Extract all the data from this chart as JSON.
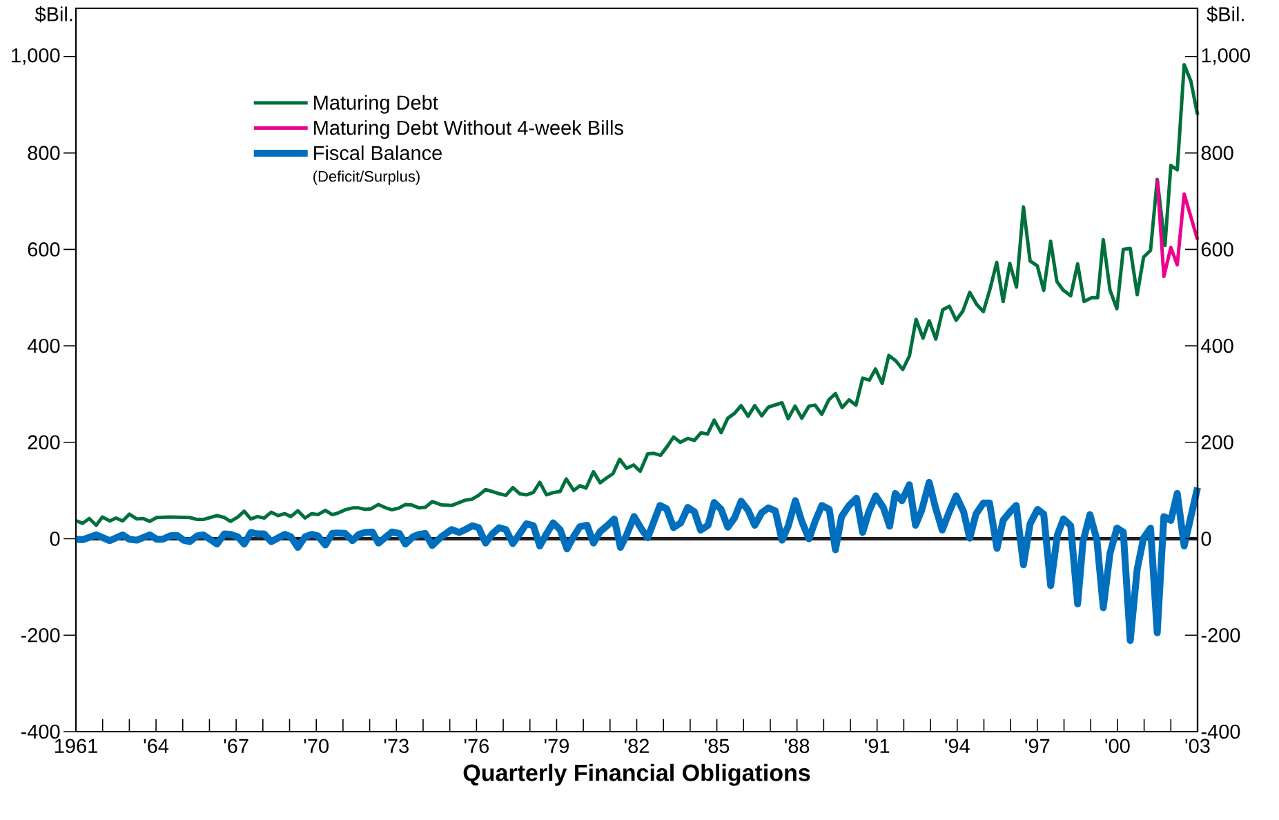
{
  "chart_data": {
    "type": "line",
    "xlabel": "Quarterly Financial Obligations",
    "ylabel": "$Bil.",
    "y2label": "$Bil.",
    "annotations": [
      "(Deficit/Surplus)"
    ],
    "xlim": [
      1961,
      2003
    ],
    "xticks": [
      {
        "value": 1961,
        "label": "1961"
      },
      {
        "value": 1964,
        "label": "'64"
      },
      {
        "value": 1967,
        "label": "'67"
      },
      {
        "value": 1970,
        "label": "'70"
      },
      {
        "value": 1973,
        "label": "'73"
      },
      {
        "value": 1976,
        "label": "'76"
      },
      {
        "value": 1979,
        "label": "'79"
      },
      {
        "value": 1982,
        "label": "'82"
      },
      {
        "value": 1985,
        "label": "'85"
      },
      {
        "value": 1988,
        "label": "'88"
      },
      {
        "value": 1991,
        "label": "'91"
      },
      {
        "value": 1994,
        "label": "'94"
      },
      {
        "value": 1997,
        "label": "'97"
      },
      {
        "value": 2000,
        "label": "'00"
      },
      {
        "value": 2003,
        "label": "'03"
      }
    ],
    "ylim": [
      -400,
      1100
    ],
    "yticks": [
      -400,
      -200,
      0,
      200,
      400,
      600,
      800,
      {
        "value": 1000,
        "label": "1,000"
      }
    ],
    "y2lim": [
      -400,
      1100
    ],
    "y2ticks": [
      -400,
      -200,
      0,
      200,
      400,
      600,
      800,
      {
        "value": 1000,
        "label": "1,000"
      }
    ],
    "legend": "top left",
    "ref_lines": [
      {
        "axis": "y",
        "value": 0,
        "color": "#231f20"
      }
    ],
    "series": [
      {
        "name": "Maturing Debt",
        "color": "#00703c",
        "x": [
          1961.02,
          1961.25,
          1961.5,
          1961.76,
          1961.99,
          1962.27,
          1962.5,
          1962.75,
          1963.0,
          1963.28,
          1963.51,
          1963.77,
          1964.02,
          1964.53,
          1965.26,
          1965.54,
          1965.77,
          1966.28,
          1966.56,
          1966.79,
          1967.06,
          1967.3,
          1967.55,
          1967.8,
          1968.05,
          1968.31,
          1968.57,
          1968.82,
          1969.05,
          1969.31,
          1969.58,
          1969.83,
          1970.06,
          1970.34,
          1970.6,
          1970.8,
          1971.08,
          1971.36,
          1971.59,
          1971.82,
          1972.05,
          1972.33,
          1972.56,
          1972.83,
          1973.11,
          1973.34,
          1973.57,
          1973.85,
          1974.08,
          1974.34,
          1974.59,
          1974.7,
          1975.07,
          1975.58,
          1975.83,
          1976.08,
          1976.34,
          1976.59,
          1976.87,
          1977.1,
          1977.36,
          1977.63,
          1977.88,
          1978.13,
          1978.37,
          1978.62,
          1978.9,
          1979.13,
          1979.36,
          1979.64,
          1979.87,
          1980.1,
          1980.38,
          1980.63,
          1980.87,
          1981.11,
          1981.36,
          1981.62,
          1981.88,
          1982.13,
          1982.41,
          1982.64,
          1982.89,
          1983.15,
          1983.38,
          1983.63,
          1983.91,
          1984.16,
          1984.41,
          1984.65,
          1984.9,
          1985.16,
          1985.41,
          1985.66,
          1985.91,
          1986.17,
          1986.42,
          1986.68,
          1986.93,
          1987.16,
          1987.44,
          1987.67,
          1987.93,
          1988.18,
          1988.45,
          1988.68,
          1988.93,
          1989.19,
          1989.44,
          1989.69,
          1989.95,
          1990.21,
          1990.46,
          1990.71,
          1990.94,
          1991.19,
          1991.44,
          1991.7,
          1991.96,
          1992.21,
          1992.46,
          1992.72,
          1992.95,
          1993.2,
          1993.46,
          1993.71,
          1993.96,
          1994.21,
          1994.47,
          1994.73,
          1994.98,
          1995.23,
          1995.48,
          1995.72,
          1995.97,
          1996.22,
          1996.48,
          1996.73,
          1997.0,
          1997.24,
          1997.5,
          1997.73,
          1997.96,
          1998.25,
          1998.51,
          1998.75,
          1999.04,
          1999.26,
          1999.47,
          1999.72,
          1999.98,
          2000.22,
          2000.48,
          2000.74,
          2000.98,
          2001.24,
          2001.49,
          2001.78,
          2002.0,
          2002.24,
          2002.5,
          2002.75,
          2003.0
        ],
        "values": [
          37,
          32,
          42,
          28,
          45,
          37,
          43,
          37,
          51,
          41,
          42,
          36,
          44,
          45,
          44,
          40,
          40,
          48,
          44,
          36,
          45,
          57,
          41,
          46,
          43,
          55,
          48,
          52,
          46,
          58,
          43,
          52,
          50,
          59,
          50,
          53,
          60,
          64,
          64,
          61,
          62,
          71,
          65,
          60,
          64,
          71,
          70,
          64,
          65,
          77,
          72,
          70,
          69,
          80,
          82,
          90,
          102,
          98,
          93,
          90,
          106,
          93,
          91,
          96,
          117,
          91,
          96,
          98,
          124,
          100,
          110,
          105,
          139,
          116,
          126,
          135,
          165,
          146,
          153,
          140,
          176,
          177,
          173,
          192,
          211,
          200,
          208,
          204,
          220,
          217,
          246,
          220,
          250,
          260,
          276,
          254,
          276,
          255,
          273,
          277,
          282,
          249,
          275,
          250,
          275,
          277,
          258,
          288,
          301,
          272,
          288,
          277,
          333,
          329,
          352,
          322,
          380,
          369,
          351,
          379,
          455,
          416,
          452,
          414,
          475,
          482,
          453,
          472,
          511,
          486,
          471,
          518,
          573,
          492,
          571,
          522,
          688,
          576,
          566,
          515,
          617,
          534,
          516,
          504,
          570,
          492,
          500,
          500,
          620,
          516,
          477,
          600,
          602,
          506,
          584,
          598,
          745,
          608,
          774,
          765,
          983,
          949,
          879
        ]
      },
      {
        "name": "Maturing Debt Without 4-week Bills",
        "color": "#ec008c",
        "x": [
          2001.49,
          2001.74,
          2002.0,
          2002.24,
          2002.5,
          2003.0
        ],
        "values": [
          745,
          544,
          604,
          568,
          715,
          620
        ]
      },
      {
        "name": "Fiscal Balance",
        "color": "#006fbe",
        "x": [
          1961.02,
          1961.25,
          1961.76,
          1962.27,
          1962.75,
          1963.0,
          1963.28,
          1963.77,
          1964.02,
          1964.25,
          1964.53,
          1964.79,
          1965.03,
          1965.26,
          1965.54,
          1965.77,
          1966.28,
          1966.56,
          1966.79,
          1967.06,
          1967.3,
          1967.55,
          1967.8,
          1968.05,
          1968.31,
          1968.82,
          1969.05,
          1969.31,
          1969.58,
          1969.83,
          1970.06,
          1970.34,
          1970.6,
          1970.8,
          1971.08,
          1971.36,
          1971.59,
          1971.82,
          1972.1,
          1972.33,
          1972.83,
          1973.11,
          1973.34,
          1973.62,
          1973.85,
          1974.08,
          1974.34,
          1974.59,
          1974.7,
          1975.07,
          1975.35,
          1975.58,
          1975.85,
          1976.08,
          1976.34,
          1976.59,
          1976.85,
          1977.1,
          1977.36,
          1977.61,
          1977.87,
          1978.13,
          1978.37,
          1978.62,
          1978.87,
          1979.13,
          1979.39,
          1979.64,
          1979.87,
          1980.14,
          1980.38,
          1980.63,
          1980.87,
          1981.16,
          1981.39,
          1981.62,
          1981.9,
          1982.18,
          1982.41,
          1982.87,
          1983.12,
          1983.38,
          1983.65,
          1983.91,
          1984.16,
          1984.39,
          1984.67,
          1984.9,
          1985.16,
          1985.41,
          1985.66,
          1985.91,
          1986.17,
          1986.42,
          1986.68,
          1986.93,
          1987.19,
          1987.44,
          1987.67,
          1987.94,
          1988.18,
          1988.45,
          1988.68,
          1988.93,
          1989.21,
          1989.44,
          1989.67,
          1989.95,
          1990.23,
          1990.46,
          1990.69,
          1990.95,
          1991.24,
          1991.47,
          1991.68,
          1991.93,
          1992.21,
          1992.44,
          1992.67,
          1992.95,
          1993.18,
          1993.44,
          1993.69,
          1993.96,
          1994.24,
          1994.47,
          1994.7,
          1994.98,
          1995.21,
          1995.49,
          1995.72,
          1995.95,
          1996.21,
          1996.48,
          1996.73,
          1997.01,
          1997.24,
          1997.5,
          1997.75,
          1997.98,
          1998.25,
          1998.51,
          1998.71,
          1998.97,
          1999.23,
          1999.47,
          1999.72,
          1999.98,
          2000.22,
          2000.48,
          2000.74,
          2000.98,
          2001.24,
          2001.49,
          2001.74,
          2002.0,
          2002.24,
          2002.5,
          2003.0
        ],
        "values": [
          -1,
          -2,
          8,
          -4,
          8,
          -1,
          -3,
          8,
          -1,
          -1,
          6,
          7,
          -3,
          -6,
          6,
          8,
          -11,
          10,
          9,
          4,
          -11,
          13,
          10,
          10,
          -6,
          9,
          4,
          -18,
          4,
          9,
          6,
          -13,
          11,
          12,
          11,
          -4,
          9,
          13,
          14,
          -9,
          14,
          11,
          -11,
          4,
          9,
          11,
          -14,
          -1,
          5,
          19,
          13,
          19,
          27,
          23,
          -9,
          10,
          23,
          19,
          -10,
          10,
          31,
          27,
          -15,
          10,
          33,
          19,
          -21,
          5,
          25,
          28,
          -9,
          15,
          26,
          41,
          -18,
          8,
          46,
          20,
          2,
          69,
          62,
          23,
          33,
          65,
          56,
          18,
          28,
          75,
          61,
          24,
          43,
          78,
          59,
          28,
          54,
          64,
          58,
          -3,
          26,
          79,
          36,
          0,
          36,
          69,
          61,
          -23,
          46,
          69,
          84,
          13,
          56,
          89,
          64,
          26,
          94,
          79,
          112,
          28,
          59,
          117,
          66,
          18,
          54,
          89,
          56,
          1,
          51,
          74,
          74,
          -20,
          38,
          54,
          69,
          -54,
          31,
          61,
          51,
          -97,
          8,
          41,
          27,
          -135,
          -6,
          50,
          -2,
          -143,
          -31,
          22,
          14,
          -211,
          -63,
          2,
          22,
          -195,
          46,
          38,
          94,
          -15,
          106
        ]
      }
    ]
  }
}
